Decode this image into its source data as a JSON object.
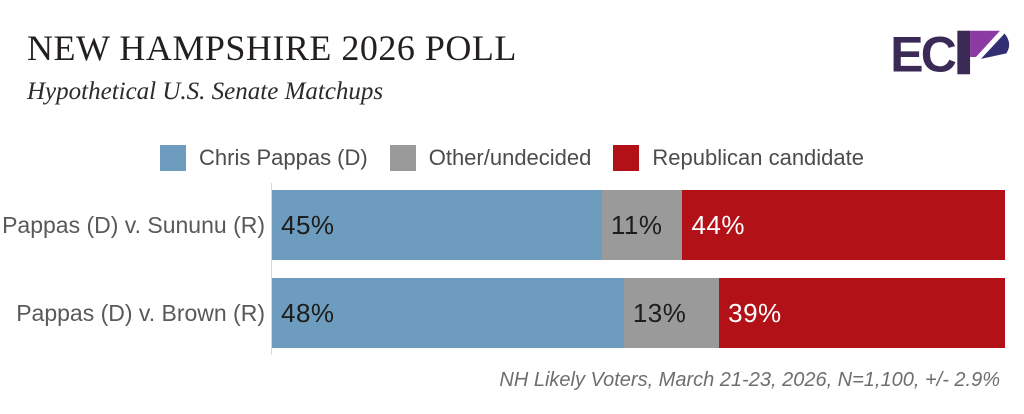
{
  "header": {
    "title": "NEW HAMPSHIRE 2026 POLL",
    "subtitle": "Hypothetical U.S. Senate Matchups",
    "logo_text": "ECP"
  },
  "colors": {
    "dem_blue": "#6d9cbf",
    "undecided_gray": "#9a9a9a",
    "rep_red": "#b21217",
    "logo_dark_purple": "#3a2a55",
    "logo_bright_purple": "#8b3aa3",
    "logo_navy": "#312f72",
    "axis_line": "#d9d9d9"
  },
  "legend": [
    {
      "label": "Chris Pappas (D)",
      "color": "#6d9cbf"
    },
    {
      "label": "Other/undecided",
      "color": "#9a9a9a"
    },
    {
      "label": "Republican candidate",
      "color": "#b21217"
    }
  ],
  "chart_data": {
    "type": "bar",
    "orientation": "horizontal",
    "stacked": true,
    "title": "NEW HAMPSHIRE 2026 POLL",
    "subtitle": "Hypothetical U.S. Senate Matchups",
    "categories": [
      "Pappas (D) v. Sununu (R)",
      "Pappas (D) v. Brown (R)"
    ],
    "series": [
      {
        "name": "Chris Pappas (D)",
        "values": [
          45,
          48
        ],
        "color": "#6d9cbf",
        "label_color": "#1d1d1d"
      },
      {
        "name": "Other/undecided",
        "values": [
          11,
          13
        ],
        "color": "#9a9a9a",
        "label_color": "#1d1d1d"
      },
      {
        "name": "Republican candidate",
        "values": [
          44,
          39
        ],
        "color": "#b21217",
        "label_color": "#ffffff"
      }
    ],
    "value_suffix": "%",
    "xlim": [
      0,
      100
    ],
    "grid": false,
    "legend_position": "top"
  },
  "footer": {
    "note": "NH Likely Voters, March 21-23, 2026, N=1,100, +/- 2.9%"
  }
}
